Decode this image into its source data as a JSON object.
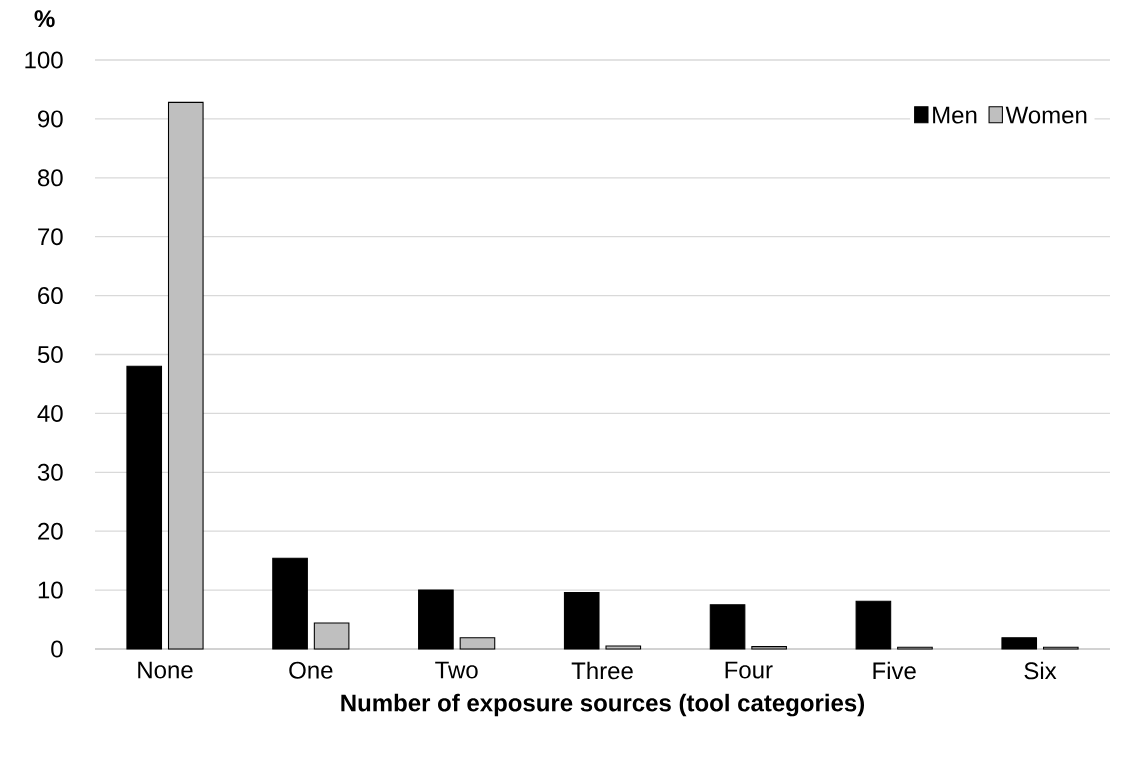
{
  "chart_data": {
    "type": "bar",
    "ylabel": "%",
    "xlabel": "Number of exposure sources (tool categories)",
    "categories": [
      "None",
      "One",
      "Two",
      "Three",
      "Four",
      "Five",
      "Six"
    ],
    "series": [
      {
        "name": "Men",
        "color": "#000000",
        "values": [
          48,
          15.4,
          10,
          9.6,
          7.5,
          8.1,
          1.9
        ]
      },
      {
        "name": "Women",
        "color": "#bfbfbf",
        "values": [
          92.8,
          4.4,
          1.9,
          0.5,
          0.4,
          0.3,
          0.3
        ]
      }
    ],
    "ylim": [
      0,
      100
    ],
    "yticks": [
      0,
      10,
      20,
      30,
      40,
      50,
      60,
      70,
      80,
      90,
      100
    ],
    "grid": "y",
    "legend": "top right"
  }
}
